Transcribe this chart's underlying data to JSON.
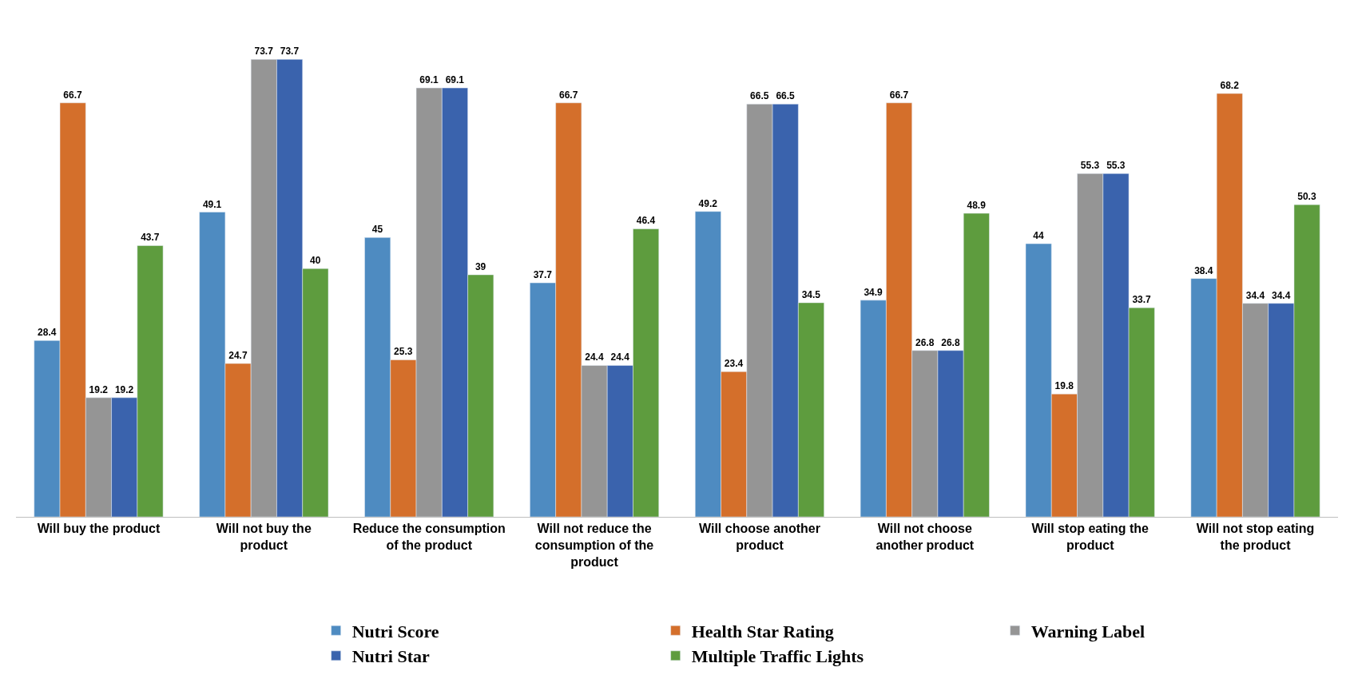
{
  "chart_data": {
    "type": "bar",
    "categories": [
      "Will buy the product",
      "Will not buy the product",
      "Reduce the consumption of the product",
      "Will not reduce the consumption of the product",
      "Will choose another product",
      "Will not choose another product",
      "Will stop eating the product",
      "Will not stop eating the product"
    ],
    "series": [
      {
        "name": "Nutri Score",
        "color": "#4e8bc1",
        "values": [
          28.4,
          49.1,
          45,
          37.7,
          49.2,
          34.9,
          44,
          38.4
        ]
      },
      {
        "name": "Health Star Rating",
        "color": "#d46f2b",
        "values": [
          66.7,
          24.7,
          25.3,
          66.7,
          23.4,
          66.7,
          19.8,
          68.2
        ]
      },
      {
        "name": "Warning Label",
        "color": "#959595",
        "values": [
          19.2,
          73.7,
          69.1,
          24.4,
          66.5,
          26.8,
          55.3,
          34.4
        ]
      },
      {
        "name": "Nutri Star",
        "color": "#3a63ad",
        "values": [
          19.2,
          73.7,
          69.1,
          24.4,
          66.5,
          26.8,
          55.3,
          34.4
        ]
      },
      {
        "name": "Multiple Traffic Lights",
        "color": "#5e9c3e",
        "values": [
          43.7,
          40,
          39,
          46.4,
          34.5,
          48.9,
          33.7,
          50.3
        ]
      }
    ],
    "data_labels": true,
    "legend": "bottom",
    "tick_labels": "x"
  }
}
